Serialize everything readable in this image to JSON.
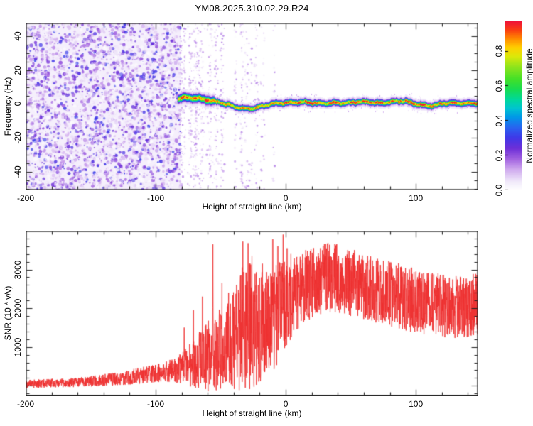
{
  "title": "YM08.2025.310.02.29.R24",
  "panel_top": {
    "xlabel": "Height of straight line (km)",
    "ylabel": "Frequency (Hz)",
    "x_ticks": {
      "values": [
        -200,
        -100,
        0,
        100
      ],
      "labels": [
        "-200",
        "-100",
        "0",
        "100"
      ]
    },
    "y_ticks": {
      "values": [
        40,
        20,
        0,
        -20,
        -40
      ],
      "labels": [
        "40",
        "20",
        "0",
        "-20",
        "-40"
      ]
    }
  },
  "colorbar": {
    "label": "Normalized spectral amplitude",
    "ticks": {
      "values": [
        0,
        0.2,
        0.4,
        0.6,
        0.8
      ],
      "labels": [
        "0.0",
        "0.2",
        "0.4",
        "0.6",
        "0.8"
      ]
    },
    "range": [
      0,
      0.97
    ]
  },
  "panel_bottom": {
    "xlabel": "Height of straight line (km)",
    "ylabel": "SNR (10 * v/v)",
    "x_ticks": {
      "values": [
        -200,
        -100,
        0,
        100
      ],
      "labels": [
        "-200",
        "-100",
        "0",
        "100"
      ]
    },
    "y_ticks": {
      "values": [
        3000,
        2000,
        1000
      ],
      "labels": [
        "3000",
        "2000",
        "1000"
      ]
    }
  },
  "chart_data": [
    {
      "type": "heatmap",
      "title": "YM08.2025.310.02.29.R24",
      "xlabel": "Height of straight line (km)",
      "ylabel": "Frequency (Hz)",
      "legend_label": "Normalized spectral amplitude",
      "xlim": [
        -200,
        148
      ],
      "ylim": [
        -51,
        48
      ],
      "x_major_step": 100,
      "x_minor_step": 20,
      "y_major_step": 20,
      "y_minor_step": 5,
      "grid": false,
      "colormap": [
        [
          0.0,
          "#ffffff"
        ],
        [
          0.05,
          "#f0e8fa"
        ],
        [
          0.12,
          "#cfa8ee"
        ],
        [
          0.18,
          "#a060e0"
        ],
        [
          0.24,
          "#6d2fd8"
        ],
        [
          0.3,
          "#4038e8"
        ],
        [
          0.36,
          "#2864f0"
        ],
        [
          0.42,
          "#0098e8"
        ],
        [
          0.47,
          "#00c4d0"
        ],
        [
          0.52,
          "#00d89c"
        ],
        [
          0.58,
          "#18dc50"
        ],
        [
          0.64,
          "#44e028"
        ],
        [
          0.71,
          "#90e41c"
        ],
        [
          0.77,
          "#dce80a"
        ],
        [
          0.82,
          "#ffd000"
        ],
        [
          0.87,
          "#ff8c00"
        ],
        [
          0.92,
          "#fa4010"
        ],
        [
          0.97,
          "#f01438"
        ],
        [
          1.0,
          "#e80a50"
        ]
      ],
      "noise_region": {
        "x_range": [
          -200,
          -81
        ],
        "amplitude_range": [
          0.02,
          0.32
        ]
      },
      "sparse_streak_region": {
        "x_range": [
          -81,
          -5
        ],
        "amplitude_range": [
          0.03,
          0.18
        ]
      },
      "signal_trace": {
        "amplitude_range": [
          0.8,
          1.0
        ],
        "half_width_hz": 2.5,
        "points": [
          [
            -83,
            3.2
          ],
          [
            -79,
            4.2
          ],
          [
            -75,
            3.6
          ],
          [
            -71,
            3.9
          ],
          [
            -67,
            3.4
          ],
          [
            -63,
            2.9
          ],
          [
            -59,
            2.4
          ],
          [
            -55,
            1.7
          ],
          [
            -51,
            1.1
          ],
          [
            -47,
            0.3
          ],
          [
            -43,
            -0.5
          ],
          [
            -39,
            -1.5
          ],
          [
            -35,
            -2.2
          ],
          [
            -31,
            -2.7
          ],
          [
            -27,
            -2.6
          ],
          [
            -23,
            -1.9
          ],
          [
            -19,
            -1.2
          ],
          [
            -15,
            -0.4
          ],
          [
            -11,
            0.3
          ],
          [
            -7,
            0.6
          ],
          [
            -3,
            0.8
          ],
          [
            2,
            0.9
          ],
          [
            8,
            1.2
          ],
          [
            14,
            1.3
          ],
          [
            20,
            0.9
          ],
          [
            26,
            0.6
          ],
          [
            32,
            0.5
          ],
          [
            38,
            0.9
          ],
          [
            44,
            0.8
          ],
          [
            50,
            1.0
          ],
          [
            56,
            1.5
          ],
          [
            62,
            1.5
          ],
          [
            68,
            1.0
          ],
          [
            74,
            0.8
          ],
          [
            80,
            1.3
          ],
          [
            86,
            1.9
          ],
          [
            91,
            2.0
          ],
          [
            96,
            1.0
          ],
          [
            101,
            0.1
          ],
          [
            106,
            -0.7
          ],
          [
            111,
            -1.0
          ],
          [
            116,
            -0.3
          ],
          [
            121,
            0.5
          ],
          [
            126,
            0.8
          ],
          [
            131,
            0.6
          ],
          [
            136,
            0.5
          ],
          [
            141,
            0.7
          ],
          [
            148,
            0.7
          ]
        ]
      }
    },
    {
      "type": "line",
      "series_name": "SNR",
      "color": "#ee3030",
      "xlabel": "Height of straight line (km)",
      "ylabel": "SNR (10 * v/v)",
      "xlim": [
        -200,
        148
      ],
      "ylim": [
        -270,
        4000
      ],
      "x_major_step": 100,
      "x_minor_step": 20,
      "y_major_step": 1000,
      "y_minor_step": 200,
      "grid": false,
      "envelope": [
        [
          -200,
          -60,
          150
        ],
        [
          -185,
          -50,
          170
        ],
        [
          -170,
          -40,
          190
        ],
        [
          -155,
          -30,
          230
        ],
        [
          -140,
          -10,
          300
        ],
        [
          -128,
          10,
          360
        ],
        [
          -116,
          40,
          440
        ],
        [
          -105,
          70,
          520
        ],
        [
          -96,
          90,
          600
        ],
        [
          -88,
          90,
          680
        ],
        [
          -82,
          60,
          820
        ],
        [
          -76,
          0,
          1000
        ],
        [
          -70,
          -80,
          1250
        ],
        [
          -64,
          -140,
          1500
        ],
        [
          -58,
          -160,
          1750
        ],
        [
          -52,
          -120,
          1950
        ],
        [
          -46,
          -60,
          2150
        ],
        [
          -40,
          -180,
          2450
        ],
        [
          -34,
          -200,
          3200
        ],
        [
          -28,
          -180,
          3250
        ],
        [
          -22,
          -60,
          2950
        ],
        [
          -16,
          150,
          2950
        ],
        [
          -10,
          350,
          3250
        ],
        [
          -4,
          700,
          3350
        ],
        [
          2,
          1100,
          3300
        ],
        [
          8,
          1400,
          3350
        ],
        [
          15,
          1650,
          3500
        ],
        [
          22,
          1750,
          3600
        ],
        [
          30,
          1820,
          3680
        ],
        [
          38,
          1850,
          3720
        ],
        [
          46,
          1820,
          3620
        ],
        [
          54,
          1780,
          3500
        ],
        [
          62,
          1700,
          3400
        ],
        [
          70,
          1620,
          3320
        ],
        [
          78,
          1550,
          3260
        ],
        [
          86,
          1480,
          3180
        ],
        [
          94,
          1400,
          3080
        ],
        [
          102,
          1350,
          3000
        ],
        [
          110,
          1300,
          2950
        ],
        [
          118,
          1260,
          2900
        ],
        [
          126,
          1220,
          2860
        ],
        [
          134,
          1200,
          2840
        ],
        [
          141,
          1240,
          2880
        ],
        [
          148,
          1280,
          2940
        ]
      ],
      "spikes": [
        [
          -78,
          1500
        ],
        [
          -71,
          1950
        ],
        [
          -64,
          2300
        ],
        [
          -56,
          3650
        ],
        [
          -49,
          2650
        ],
        [
          -44,
          2400
        ],
        [
          -33,
          3720
        ],
        [
          -29,
          3680
        ],
        [
          -26,
          3350
        ],
        [
          -18,
          3150
        ],
        [
          -10,
          3780
        ],
        [
          -6,
          3600
        ],
        [
          -2,
          3900
        ],
        [
          1,
          3550
        ],
        [
          4,
          3400
        ]
      ]
    }
  ]
}
